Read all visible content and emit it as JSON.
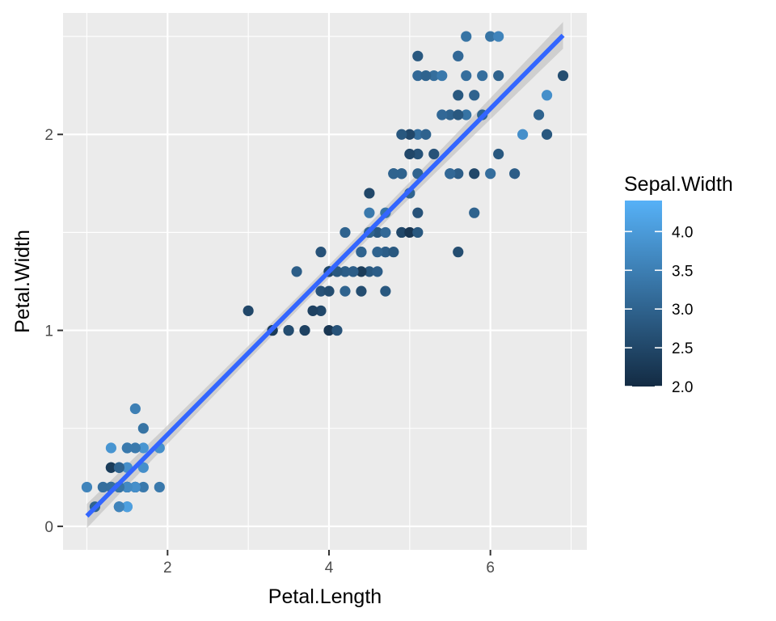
{
  "chart_data": {
    "type": "scatter",
    "title": "",
    "xlabel": "Petal.Length",
    "ylabel": "Petal.Width",
    "xlim": [
      0.705,
      7.195
    ],
    "ylim": [
      -0.12,
      2.62
    ],
    "x_major_ticks": [
      2,
      4,
      6
    ],
    "x_minor_ticks": [
      1,
      3,
      5,
      7
    ],
    "y_major_ticks": [
      0,
      1,
      2
    ],
    "y_minor_ticks": [
      0.5,
      1.5,
      2.5
    ],
    "x_tick_labels": [
      "2",
      "4",
      "6"
    ],
    "y_tick_labels": [
      "0",
      "1",
      "2"
    ],
    "grid": true,
    "panel_background": "#EBEBEB",
    "points": [
      [
        1.4,
        0.2,
        3.5
      ],
      [
        1.4,
        0.2,
        3.0
      ],
      [
        1.3,
        0.2,
        3.2
      ],
      [
        1.5,
        0.2,
        3.1
      ],
      [
        1.4,
        0.2,
        3.6
      ],
      [
        1.7,
        0.4,
        3.9
      ],
      [
        1.4,
        0.3,
        3.4
      ],
      [
        1.5,
        0.2,
        3.4
      ],
      [
        1.4,
        0.2,
        2.9
      ],
      [
        1.5,
        0.1,
        3.1
      ],
      [
        1.5,
        0.2,
        3.7
      ],
      [
        1.6,
        0.2,
        3.4
      ],
      [
        1.4,
        0.1,
        3.0
      ],
      [
        1.1,
        0.1,
        3.0
      ],
      [
        1.2,
        0.2,
        4.0
      ],
      [
        1.5,
        0.4,
        4.4
      ],
      [
        1.3,
        0.4,
        3.9
      ],
      [
        1.4,
        0.3,
        3.5
      ],
      [
        1.7,
        0.3,
        3.8
      ],
      [
        1.5,
        0.3,
        3.8
      ],
      [
        1.7,
        0.2,
        3.4
      ],
      [
        1.5,
        0.4,
        3.7
      ],
      [
        1.0,
        0.2,
        3.6
      ],
      [
        1.7,
        0.5,
        3.3
      ],
      [
        1.9,
        0.2,
        3.4
      ],
      [
        1.6,
        0.2,
        3.0
      ],
      [
        1.6,
        0.4,
        3.4
      ],
      [
        1.5,
        0.2,
        3.5
      ],
      [
        1.4,
        0.2,
        3.4
      ],
      [
        1.6,
        0.2,
        3.2
      ],
      [
        1.6,
        0.2,
        3.1
      ],
      [
        1.5,
        0.4,
        3.4
      ],
      [
        1.5,
        0.1,
        4.1
      ],
      [
        1.4,
        0.2,
        4.2
      ],
      [
        1.5,
        0.2,
        3.1
      ],
      [
        1.2,
        0.2,
        3.2
      ],
      [
        1.3,
        0.2,
        3.5
      ],
      [
        1.4,
        0.1,
        3.6
      ],
      [
        1.3,
        0.2,
        3.0
      ],
      [
        1.5,
        0.2,
        3.4
      ],
      [
        1.3,
        0.3,
        3.5
      ],
      [
        1.3,
        0.3,
        2.3
      ],
      [
        1.3,
        0.2,
        3.2
      ],
      [
        1.6,
        0.6,
        3.5
      ],
      [
        1.9,
        0.4,
        3.8
      ],
      [
        1.4,
        0.3,
        3.0
      ],
      [
        1.6,
        0.2,
        3.8
      ],
      [
        1.4,
        0.2,
        3.2
      ],
      [
        1.5,
        0.2,
        3.7
      ],
      [
        1.4,
        0.2,
        3.3
      ],
      [
        4.7,
        1.4,
        3.2
      ],
      [
        4.5,
        1.5,
        3.2
      ],
      [
        4.9,
        1.5,
        3.1
      ],
      [
        4.0,
        1.3,
        2.3
      ],
      [
        4.6,
        1.5,
        2.8
      ],
      [
        4.5,
        1.3,
        2.8
      ],
      [
        4.7,
        1.6,
        3.3
      ],
      [
        3.3,
        1.0,
        2.4
      ],
      [
        4.6,
        1.3,
        2.9
      ],
      [
        3.9,
        1.4,
        2.7
      ],
      [
        3.5,
        1.0,
        2.0
      ],
      [
        4.2,
        1.5,
        3.0
      ],
      [
        4.0,
        1.0,
        2.2
      ],
      [
        4.7,
        1.4,
        2.9
      ],
      [
        3.6,
        1.3,
        2.9
      ],
      [
        4.4,
        1.4,
        3.1
      ],
      [
        4.5,
        1.5,
        3.0
      ],
      [
        4.1,
        1.0,
        2.7
      ],
      [
        4.5,
        1.5,
        2.2
      ],
      [
        3.9,
        1.1,
        2.5
      ],
      [
        4.8,
        1.8,
        3.2
      ],
      [
        4.0,
        1.3,
        2.8
      ],
      [
        4.9,
        1.5,
        2.5
      ],
      [
        4.7,
        1.2,
        2.8
      ],
      [
        4.3,
        1.3,
        2.9
      ],
      [
        4.4,
        1.4,
        3.0
      ],
      [
        4.8,
        1.4,
        2.8
      ],
      [
        5.0,
        1.7,
        3.0
      ],
      [
        4.5,
        1.5,
        2.9
      ],
      [
        3.5,
        1.0,
        2.6
      ],
      [
        3.8,
        1.1,
        2.4
      ],
      [
        3.7,
        1.0,
        2.4
      ],
      [
        3.9,
        1.2,
        2.7
      ],
      [
        5.1,
        1.6,
        2.7
      ],
      [
        4.5,
        1.5,
        3.0
      ],
      [
        4.5,
        1.6,
        3.4
      ],
      [
        4.7,
        1.5,
        3.1
      ],
      [
        4.4,
        1.3,
        2.3
      ],
      [
        4.1,
        1.3,
        3.0
      ],
      [
        4.0,
        1.3,
        2.5
      ],
      [
        4.4,
        1.2,
        2.6
      ],
      [
        4.6,
        1.4,
        3.0
      ],
      [
        4.0,
        1.2,
        2.6
      ],
      [
        3.3,
        1.0,
        2.3
      ],
      [
        4.2,
        1.3,
        2.7
      ],
      [
        4.2,
        1.2,
        3.0
      ],
      [
        4.2,
        1.3,
        2.9
      ],
      [
        4.3,
        1.3,
        2.9
      ],
      [
        3.0,
        1.1,
        2.5
      ],
      [
        4.1,
        1.3,
        2.8
      ],
      [
        6.0,
        2.5,
        3.3
      ],
      [
        5.1,
        1.9,
        2.7
      ],
      [
        5.9,
        2.1,
        3.0
      ],
      [
        5.6,
        1.8,
        2.9
      ],
      [
        5.8,
        2.2,
        3.0
      ],
      [
        6.6,
        2.1,
        3.0
      ],
      [
        4.5,
        1.7,
        2.5
      ],
      [
        6.3,
        1.8,
        2.9
      ],
      [
        5.8,
        1.8,
        2.5
      ],
      [
        6.1,
        2.5,
        3.6
      ],
      [
        5.1,
        2.0,
        3.2
      ],
      [
        5.3,
        1.9,
        2.7
      ],
      [
        5.5,
        2.1,
        3.0
      ],
      [
        5.0,
        2.0,
        2.5
      ],
      [
        5.1,
        2.4,
        2.8
      ],
      [
        5.3,
        2.3,
        3.2
      ],
      [
        5.5,
        1.8,
        3.0
      ],
      [
        6.7,
        2.2,
        3.8
      ],
      [
        6.9,
        2.3,
        2.6
      ],
      [
        5.0,
        1.5,
        2.2
      ],
      [
        5.7,
        2.3,
        3.2
      ],
      [
        4.9,
        2.0,
        2.8
      ],
      [
        6.7,
        2.0,
        2.8
      ],
      [
        4.9,
        1.8,
        2.7
      ],
      [
        5.7,
        2.1,
        3.3
      ],
      [
        6.0,
        1.8,
        3.2
      ],
      [
        4.8,
        1.8,
        2.8
      ],
      [
        4.9,
        1.8,
        3.0
      ],
      [
        5.6,
        2.1,
        2.8
      ],
      [
        5.8,
        1.6,
        3.0
      ],
      [
        6.1,
        1.9,
        2.8
      ],
      [
        6.4,
        2.0,
        3.8
      ],
      [
        5.6,
        2.2,
        2.8
      ],
      [
        5.1,
        1.5,
        2.8
      ],
      [
        5.6,
        1.4,
        2.6
      ],
      [
        6.1,
        2.3,
        3.0
      ],
      [
        5.6,
        2.4,
        3.4
      ],
      [
        5.5,
        1.8,
        3.1
      ],
      [
        4.8,
        1.8,
        3.0
      ],
      [
        5.4,
        2.1,
        3.1
      ],
      [
        5.6,
        2.4,
        3.1
      ],
      [
        5.1,
        2.3,
        3.1
      ],
      [
        5.1,
        1.9,
        2.7
      ],
      [
        5.9,
        2.3,
        3.2
      ],
      [
        5.7,
        2.5,
        3.3
      ],
      [
        5.2,
        2.3,
        3.0
      ],
      [
        5.0,
        1.9,
        2.5
      ],
      [
        5.2,
        2.0,
        3.0
      ],
      [
        5.4,
        2.3,
        3.4
      ],
      [
        5.1,
        1.8,
        3.0
      ]
    ],
    "point_fields": [
      "Petal.Length",
      "Petal.Width",
      "Sepal.Width"
    ],
    "smooth": {
      "method": "linear",
      "x_range": [
        1.0,
        6.9
      ],
      "se_band": true,
      "color": "#3366FF",
      "band_color": "#BDBDBD"
    },
    "legend": {
      "title": "Sepal.Width",
      "position": "right",
      "type": "colorbar",
      "range": [
        2.0,
        4.4
      ],
      "low_color": "#132B43",
      "high_color": "#56B1F7",
      "breaks": [
        2.0,
        2.5,
        3.0,
        3.5,
        4.0
      ],
      "labels": [
        "2.0",
        "2.5",
        "3.0",
        "3.5",
        "4.0"
      ]
    }
  }
}
